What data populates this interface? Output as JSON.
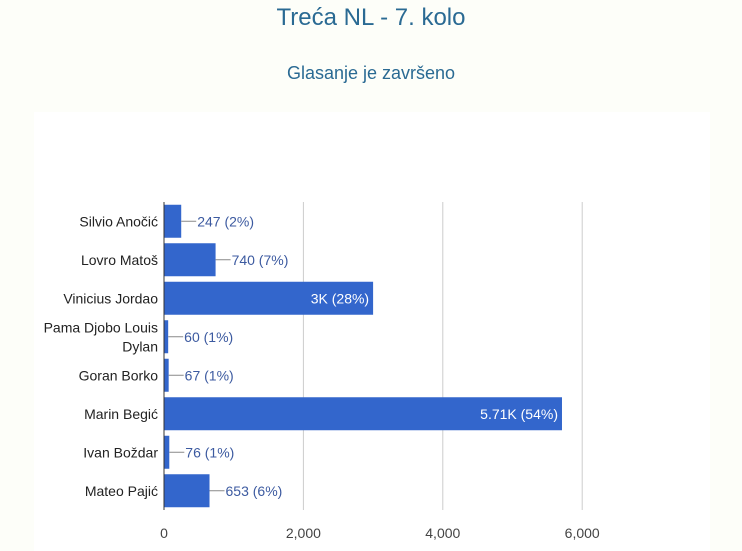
{
  "page": {
    "title": "Treća NL - 7. kolo",
    "subtitle": "Glasanje je završeno"
  },
  "colors": {
    "bar": "#3366cc",
    "label": "#3c5aa0",
    "inside_label": "#ffffff",
    "grid": "#cccccc",
    "axis_text": "#444444",
    "category_text": "#222222"
  },
  "chart_data": {
    "type": "bar",
    "orientation": "horizontal",
    "title": "",
    "xlabel": "",
    "ylabel": "",
    "grid": true,
    "legend": "none",
    "xlim": [
      0,
      6000
    ],
    "x_ticks": [
      0,
      2000,
      4000,
      6000
    ],
    "x_tick_labels": [
      "0",
      "2,000",
      "4,000",
      "6,000"
    ],
    "categories": [
      [
        "Silvio Anočić"
      ],
      [
        "Lovro Matoš"
      ],
      [
        "Vinicius Jordao"
      ],
      [
        "Pama Djobo Louis",
        "Dylan"
      ],
      [
        "Goran Borko"
      ],
      [
        "Marin Begić"
      ],
      [
        "Ivan Boždar"
      ],
      [
        "Mateo Pajić"
      ]
    ],
    "values": [
      247,
      740,
      3000,
      60,
      67,
      5710,
      76,
      653
    ],
    "data_labels": [
      "247 (2%)",
      "740 (7%)",
      "3K (28%)",
      "60 (1%)",
      "67 (1%)",
      "5.71K (54%)",
      "76 (1%)",
      "653 (6%)"
    ],
    "label_inside": [
      false,
      false,
      true,
      false,
      false,
      true,
      false,
      false
    ]
  }
}
